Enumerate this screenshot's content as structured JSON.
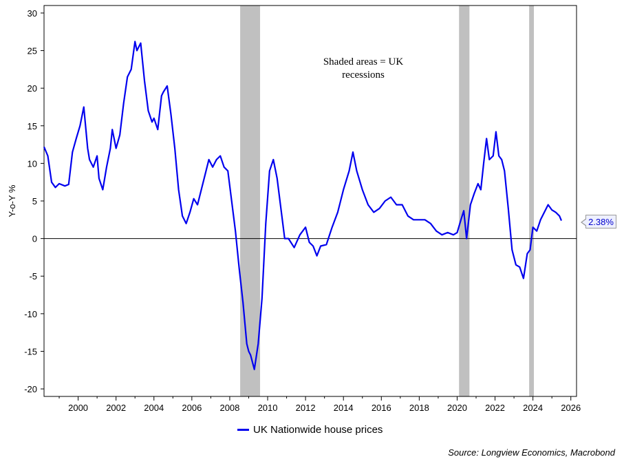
{
  "chart_data": {
    "type": "line",
    "title": "",
    "xlabel": "",
    "ylabel": "Y-o-Y %",
    "xlim": [
      1998.2,
      2026.3
    ],
    "ylim": [
      -21,
      31
    ],
    "y_ticks": [
      30,
      25,
      20,
      15,
      10,
      5,
      0,
      -5,
      -10,
      -15,
      -20
    ],
    "x_ticks": [
      2000,
      2002,
      2004,
      2006,
      2008,
      2010,
      2012,
      2014,
      2016,
      2018,
      2020,
      2022,
      2024,
      2026
    ],
    "series": [
      {
        "name": "UK Nationwide house prices",
        "color": "#0000ee",
        "x": [
          1998.2,
          1998.4,
          1998.6,
          1998.8,
          1999.0,
          1999.3,
          1999.5,
          1999.7,
          1999.9,
          2000.1,
          2000.3,
          2000.5,
          2000.6,
          2000.8,
          2001.0,
          2001.1,
          2001.3,
          2001.5,
          2001.7,
          2001.8,
          2002.0,
          2002.2,
          2002.4,
          2002.6,
          2002.8,
          2003.0,
          2003.1,
          2003.3,
          2003.5,
          2003.7,
          2003.9,
          2004.0,
          2004.2,
          2004.4,
          2004.5,
          2004.7,
          2004.9,
          2005.1,
          2005.3,
          2005.5,
          2005.7,
          2005.9,
          2006.1,
          2006.3,
          2006.5,
          2006.7,
          2006.9,
          2007.1,
          2007.3,
          2007.5,
          2007.7,
          2007.9,
          2008.1,
          2008.3,
          2008.5,
          2008.7,
          2008.9,
          2009.0,
          2009.1,
          2009.3,
          2009.5,
          2009.7,
          2009.9,
          2010.1,
          2010.3,
          2010.5,
          2010.7,
          2010.9,
          2011.1,
          2011.4,
          2011.7,
          2012.0,
          2012.2,
          2012.4,
          2012.6,
          2012.8,
          2013.1,
          2013.4,
          2013.7,
          2014.0,
          2014.3,
          2014.5,
          2014.7,
          2015.0,
          2015.3,
          2015.6,
          2015.9,
          2016.2,
          2016.5,
          2016.8,
          2017.1,
          2017.4,
          2017.7,
          2018.0,
          2018.3,
          2018.6,
          2018.9,
          2019.2,
          2019.5,
          2019.8,
          2020.0,
          2020.2,
          2020.35,
          2020.5,
          2020.7,
          2020.9,
          2021.1,
          2021.25,
          2021.4,
          2021.55,
          2021.7,
          2021.9,
          2022.05,
          2022.2,
          2022.35,
          2022.5,
          2022.7,
          2022.9,
          2023.1,
          2023.3,
          2023.5,
          2023.7,
          2023.85,
          2024.0,
          2024.2,
          2024.4,
          2024.6,
          2024.8,
          2025.0,
          2025.2,
          2025.4,
          2025.5
        ],
        "values": [
          12.2,
          11.0,
          7.5,
          6.8,
          7.3,
          7.0,
          7.2,
          11.5,
          13.3,
          15.0,
          17.5,
          12.0,
          10.5,
          9.5,
          11.0,
          8.0,
          6.5,
          9.5,
          12.0,
          14.5,
          12.0,
          13.8,
          18.0,
          21.5,
          22.5,
          26.2,
          25.0,
          26.0,
          21.0,
          17.0,
          15.5,
          16.0,
          14.5,
          19.0,
          19.5,
          20.3,
          16.5,
          12.0,
          6.5,
          3.0,
          2.0,
          3.5,
          5.3,
          4.5,
          6.5,
          8.5,
          10.5,
          9.5,
          10.5,
          11.0,
          9.5,
          9.0,
          5.0,
          1.0,
          -4.0,
          -8.5,
          -14.0,
          -15.0,
          -15.5,
          -17.4,
          -14.0,
          -8.0,
          2.0,
          9.0,
          10.5,
          8.0,
          4.0,
          0.0,
          0.0,
          -1.2,
          0.5,
          1.5,
          -0.5,
          -1.0,
          -2.3,
          -1.0,
          -0.8,
          1.5,
          3.5,
          6.5,
          9.0,
          11.5,
          9.0,
          6.5,
          4.5,
          3.5,
          4.0,
          5.0,
          5.5,
          4.5,
          4.5,
          3.0,
          2.5,
          2.5,
          2.5,
          2.0,
          1.0,
          0.5,
          0.8,
          0.5,
          0.8,
          2.5,
          3.7,
          0.0,
          4.5,
          6.0,
          7.3,
          6.5,
          10.0,
          13.3,
          10.5,
          11.0,
          14.2,
          11.0,
          10.5,
          9.0,
          4.0,
          -1.5,
          -3.5,
          -3.8,
          -5.3,
          -2.0,
          -1.5,
          1.5,
          1.0,
          2.5,
          3.5,
          4.5,
          3.8,
          3.5,
          3.0,
          2.38
        ]
      }
    ],
    "shaded_regions": [
      {
        "label": "UK recession",
        "from": 2008.55,
        "to": 2009.6
      },
      {
        "label": "UK recession",
        "from": 2020.1,
        "to": 2020.65
      },
      {
        "label": "UK recession",
        "from": 2023.8,
        "to": 2024.05
      }
    ],
    "annotation": [
      "Shaded areas = UK",
      "recessions"
    ],
    "last_value_label": "2.38%",
    "legend_label": "UK Nationwide house prices",
    "source": "Source: Longview Economics, Macrobond"
  }
}
